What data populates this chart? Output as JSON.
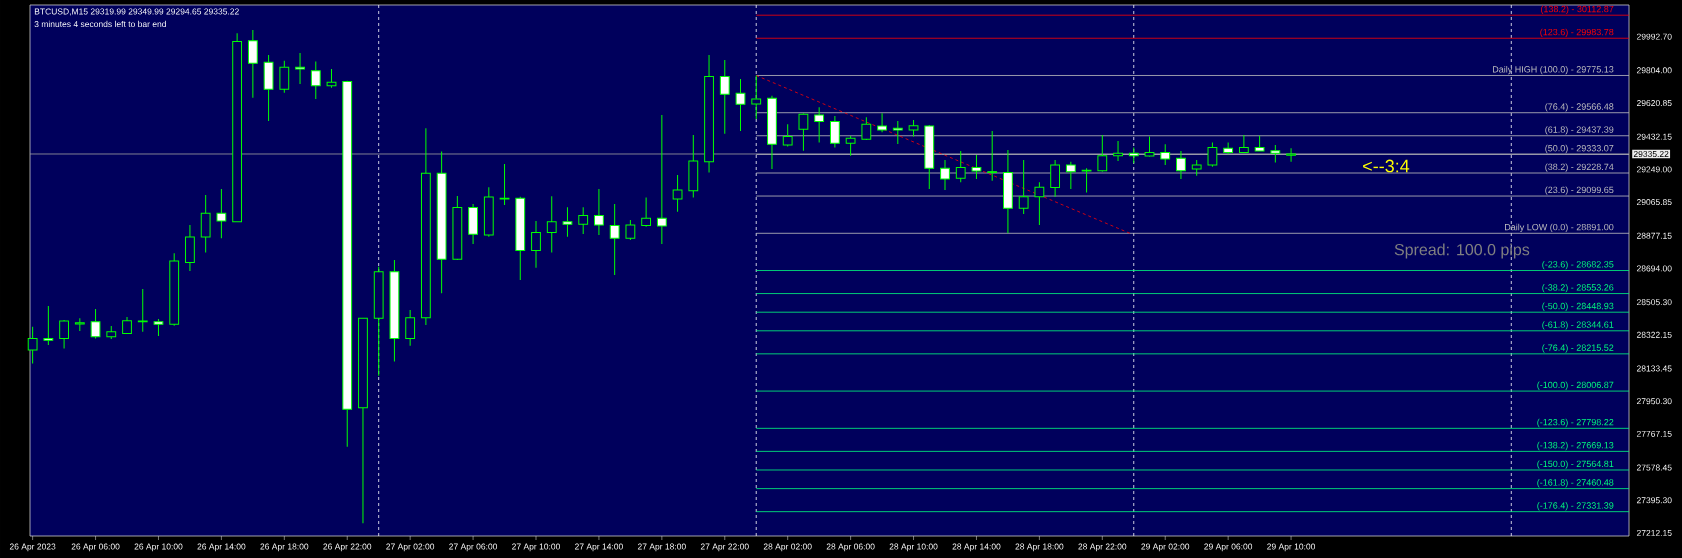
{
  "chart_data": {
    "type": "candlestick",
    "title": "BTCUSD,M15 29319.99 29349.99 29294.65 29335.22",
    "annotations": [
      "3 minutes 4 seconds left to bar end",
      "<--3:4",
      "Spread: 100.0 pips"
    ],
    "color": "#00ff00",
    "x": [
      "2023-04-26T02:00",
      "2023-04-26T03:00",
      "2023-04-26T04:00",
      "2023-04-26T05:00",
      "2023-04-26T06:00",
      "2023-04-26T07:00",
      "2023-04-26T08:00",
      "2023-04-26T09:00",
      "2023-04-26T10:00",
      "2023-04-26T11:00",
      "2023-04-26T12:00",
      "2023-04-26T13:00",
      "2023-04-26T14:00",
      "2023-04-26T15:00",
      "2023-04-26T16:00",
      "2023-04-26T17:00",
      "2023-04-26T18:00",
      "2023-04-26T19:00",
      "2023-04-26T20:00",
      "2023-04-26T21:00",
      "2023-04-26T22:00",
      "2023-04-26T23:00",
      "2023-04-27T00:00",
      "2023-04-27T01:00",
      "2023-04-27T02:00",
      "2023-04-27T03:00",
      "2023-04-27T04:00",
      "2023-04-27T05:00",
      "2023-04-27T06:00",
      "2023-04-27T07:00",
      "2023-04-27T08:00",
      "2023-04-27T09:00",
      "2023-04-27T10:00",
      "2023-04-27T11:00",
      "2023-04-27T12:00",
      "2023-04-27T13:00",
      "2023-04-27T14:00",
      "2023-04-27T15:00",
      "2023-04-27T16:00",
      "2023-04-27T17:00",
      "2023-04-27T18:00",
      "2023-04-27T19:00",
      "2023-04-27T20:00",
      "2023-04-27T21:00",
      "2023-04-27T22:00",
      "2023-04-27T23:00",
      "2023-04-28T00:00",
      "2023-04-28T01:00",
      "2023-04-28T02:00",
      "2023-04-28T03:00",
      "2023-04-28T04:00",
      "2023-04-28T05:00",
      "2023-04-28T06:00",
      "2023-04-28T07:00",
      "2023-04-28T08:00",
      "2023-04-28T09:00",
      "2023-04-28T10:00",
      "2023-04-28T11:00",
      "2023-04-28T12:00",
      "2023-04-28T13:00",
      "2023-04-28T14:00",
      "2023-04-28T15:00",
      "2023-04-28T16:00",
      "2023-04-28T17:00",
      "2023-04-28T18:00",
      "2023-04-28T19:00",
      "2023-04-28T20:00",
      "2023-04-28T21:00",
      "2023-04-28T22:00",
      "2023-04-28T23:00",
      "2023-04-29T00:00",
      "2023-04-29T01:00",
      "2023-04-29T02:00",
      "2023-04-29T03:00",
      "2023-04-29T04:00",
      "2023-04-29T05:00",
      "2023-04-29T06:00",
      "2023-04-29T07:00",
      "2023-04-29T08:00",
      "2023-04-29T09:00",
      "2023-04-29T10:00"
    ],
    "ohlc": [
      [
        28237,
        28368,
        28162,
        28302
      ],
      [
        28302,
        28484,
        28265,
        28292
      ],
      [
        28302,
        28405,
        28246,
        28400
      ],
      [
        28383,
        28415,
        28344,
        28390
      ],
      [
        28396,
        28467,
        28302,
        28312
      ],
      [
        28312,
        28372,
        28299,
        28340
      ],
      [
        28329,
        28422,
        28329,
        28401
      ],
      [
        28396,
        28579,
        28340,
        28400
      ],
      [
        28396,
        28411,
        28316,
        28381
      ],
      [
        28381,
        28779,
        28373,
        28736
      ],
      [
        28728,
        28938,
        28680,
        28870
      ],
      [
        28870,
        29106,
        28783,
        29003
      ],
      [
        29003,
        29139,
        28863,
        28960
      ],
      [
        28956,
        30012,
        28953,
        29965
      ],
      [
        29969,
        30030,
        29651,
        29844
      ],
      [
        29849,
        29890,
        29520,
        29698
      ],
      [
        29698,
        29857,
        29679,
        29821
      ],
      [
        29821,
        29901,
        29728,
        29812
      ],
      [
        29801,
        29853,
        29644,
        29718
      ],
      [
        29718,
        29812,
        29707,
        29737
      ],
      [
        29741,
        29745,
        27695,
        27905
      ],
      [
        27914,
        28415,
        27266,
        28415
      ],
      [
        28415,
        28704,
        28093,
        28676
      ],
      [
        28676,
        28741,
        28172,
        28302
      ],
      [
        28302,
        28461,
        28261,
        28418
      ],
      [
        28418,
        29479,
        28377,
        29227
      ],
      [
        29227,
        29349,
        28555,
        28745
      ],
      [
        28745,
        29100,
        28741,
        29035
      ],
      [
        29035,
        29055,
        28831,
        28885
      ],
      [
        28882,
        29149,
        28872,
        29094
      ],
      [
        29083,
        29279,
        29050,
        29087
      ],
      [
        29087,
        29096,
        28629,
        28794
      ],
      [
        28794,
        28960,
        28698,
        28896
      ],
      [
        28896,
        29098,
        28783,
        28956
      ],
      [
        28956,
        29037,
        28872,
        28941
      ],
      [
        28941,
        29037,
        28887,
        28990
      ],
      [
        28990,
        29139,
        28882,
        28938
      ],
      [
        28934,
        29055,
        28657,
        28863
      ],
      [
        28863,
        28966,
        28853,
        28938
      ],
      [
        28934,
        29091,
        28928,
        28975
      ],
      [
        28975,
        29554,
        28831,
        28932
      ],
      [
        29083,
        29218,
        29012,
        29134
      ],
      [
        29130,
        29442,
        29091,
        29296
      ],
      [
        29292,
        29890,
        29231,
        29769
      ],
      [
        29769,
        29862,
        29448,
        29670
      ],
      [
        29675,
        29756,
        29464,
        29614
      ],
      [
        29616,
        29775,
        29532,
        29644
      ],
      [
        29647,
        29662,
        29251,
        29390
      ],
      [
        29386,
        29502,
        29377,
        29433
      ],
      [
        29474,
        29563,
        29354,
        29558
      ],
      [
        29554,
        29597,
        29399,
        29517
      ],
      [
        29517,
        29548,
        29371,
        29395
      ],
      [
        29395,
        29436,
        29326,
        29423
      ],
      [
        29418,
        29541,
        29414,
        29502
      ],
      [
        29492,
        29563,
        29457,
        29470
      ],
      [
        29479,
        29520,
        29391,
        29470
      ],
      [
        29470,
        29526,
        29433,
        29494
      ],
      [
        29492,
        29498,
        29139,
        29255
      ],
      [
        29255,
        29302,
        29134,
        29195
      ],
      [
        29199,
        29352,
        29177,
        29259
      ],
      [
        29259,
        29330,
        29195,
        29240
      ],
      [
        29236,
        29464,
        29186,
        29231
      ],
      [
        29231,
        29358,
        28891,
        29031
      ],
      [
        29031,
        29302,
        28999,
        29096
      ],
      [
        29096,
        29177,
        28938,
        29149
      ],
      [
        29147,
        29302,
        29096,
        29274
      ],
      [
        29274,
        29292,
        29139,
        29236
      ],
      [
        29240,
        29255,
        29119,
        29244
      ],
      [
        29242,
        29442,
        29236,
        29326
      ],
      [
        29326,
        29408,
        29296,
        29339
      ],
      [
        29339,
        29371,
        29283,
        29326
      ],
      [
        29324,
        29433,
        29320,
        29343
      ],
      [
        29343,
        29390,
        29274,
        29307
      ],
      [
        29311,
        29352,
        29195,
        29242
      ],
      [
        29251,
        29302,
        29214,
        29274
      ],
      [
        29274,
        29399,
        29264,
        29371
      ],
      [
        29367,
        29399,
        29334,
        29343
      ],
      [
        29343,
        29442,
        29339,
        29371
      ],
      [
        29371,
        29438,
        29349,
        29352
      ],
      [
        29354,
        29386,
        29287,
        29339
      ],
      [
        29328,
        29367,
        29292,
        29335
      ]
    ],
    "xlim": [
      "2023-04-26T01:50",
      "2023-04-30T07:29"
    ],
    "ylim": [
      27195,
      30170
    ],
    "xticks": [
      {
        "value": "2023-04-26T02:00",
        "label": "26 Apr 2023"
      },
      {
        "value": "2023-04-26T06:00",
        "label": "26 Apr 06:00"
      },
      {
        "value": "2023-04-26T10:00",
        "label": "26 Apr 10:00"
      },
      {
        "value": "2023-04-26T14:00",
        "label": "26 Apr 14:00"
      },
      {
        "value": "2023-04-26T18:00",
        "label": "26 Apr 18:00"
      },
      {
        "value": "2023-04-26T22:00",
        "label": "26 Apr 22:00"
      },
      {
        "value": "2023-04-27T02:00",
        "label": "27 Apr 02:00"
      },
      {
        "value": "2023-04-27T06:00",
        "label": "27 Apr 06:00"
      },
      {
        "value": "2023-04-27T10:00",
        "label": "27 Apr 10:00"
      },
      {
        "value": "2023-04-27T14:00",
        "label": "27 Apr 14:00"
      },
      {
        "value": "2023-04-27T18:00",
        "label": "27 Apr 18:00"
      },
      {
        "value": "2023-04-27T22:00",
        "label": "27 Apr 22:00"
      },
      {
        "value": "2023-04-28T02:00",
        "label": "28 Apr 02:00"
      },
      {
        "value": "2023-04-28T06:00",
        "label": "28 Apr 06:00"
      },
      {
        "value": "2023-04-28T10:00",
        "label": "28 Apr 10:00"
      },
      {
        "value": "2023-04-28T14:00",
        "label": "28 Apr 14:00"
      },
      {
        "value": "2023-04-28T18:00",
        "label": "28 Apr 18:00"
      },
      {
        "value": "2023-04-28T22:00",
        "label": "28 Apr 22:00"
      },
      {
        "value": "2023-04-29T02:00",
        "label": "29 Apr 02:00"
      },
      {
        "value": "2023-04-29T06:00",
        "label": "29 Apr 06:00"
      },
      {
        "value": "2023-04-29T10:00",
        "label": "29 Apr 10:00"
      }
    ],
    "yticks": [
      {
        "value": 29992.7,
        "label": "29992.70"
      },
      {
        "value": 29804.0,
        "label": "29804.00"
      },
      {
        "value": 29620.85,
        "label": "29620.85"
      },
      {
        "value": 29432.15,
        "label": "29432.15"
      },
      {
        "value": 29249.0,
        "label": "29249.00"
      },
      {
        "value": 29065.85,
        "label": "29065.85"
      },
      {
        "value": 28877.15,
        "label": "28877.15"
      },
      {
        "value": 28694.0,
        "label": "28694.00"
      },
      {
        "value": 28505.3,
        "label": "28505.30"
      },
      {
        "value": 28322.15,
        "label": "28322.15"
      },
      {
        "value": 28133.45,
        "label": "28133.45"
      },
      {
        "value": 27950.3,
        "label": "27950.30"
      },
      {
        "value": 27767.15,
        "label": "27767.15"
      },
      {
        "value": 27578.45,
        "label": "27578.45"
      },
      {
        "value": 27395.3,
        "label": "27395.30"
      },
      {
        "value": 27212.15,
        "label": "27212.15"
      }
    ],
    "ref_lines": [
      {
        "axis": "y",
        "value": 29335.22,
        "label": "29335.22",
        "color": "#a0a0a0"
      },
      {
        "axis": "x",
        "value": "2023-04-27T00:00",
        "color": "#ffffff",
        "line_style": "dashed"
      },
      {
        "axis": "x",
        "value": "2023-04-28T00:00",
        "color": "#ffffff",
        "line_style": "dashed"
      },
      {
        "axis": "x",
        "value": "2023-04-29T00:00",
        "color": "#ffffff",
        "line_style": "dashed"
      },
      {
        "axis": "x",
        "value": "2023-04-30T00:00",
        "color": "#ffffff",
        "line_style": "dashed"
      }
    ],
    "series": [
      {
        "type": "line",
        "name": "(138.2) - 30112.87",
        "x": [
          "2023-04-28T00:00",
          "2023-04-30T07:29"
        ],
        "values": [
          30112.87,
          30112.87
        ],
        "color": "#ff0000"
      },
      {
        "type": "line",
        "name": "(123.6) - 29983.78",
        "x": [
          "2023-04-28T00:00",
          "2023-04-30T07:29"
        ],
        "values": [
          29983.78,
          29983.78
        ],
        "color": "#ff0000"
      },
      {
        "type": "line",
        "name": "Daily HIGH (100.0) - 29775.13",
        "x": [
          "2023-04-28T00:00",
          "2023-04-30T07:29"
        ],
        "values": [
          29775.13,
          29775.13
        ],
        "color": "#c0c0c0"
      },
      {
        "type": "line",
        "name": "(76.4) - 29566.48",
        "x": [
          "2023-04-28T00:00",
          "2023-04-30T07:29"
        ],
        "values": [
          29566.48,
          29566.48
        ],
        "color": "#c0c0c0"
      },
      {
        "type": "line",
        "name": "(61.8) - 29437.39",
        "x": [
          "2023-04-28T00:00",
          "2023-04-30T07:29"
        ],
        "values": [
          29437.39,
          29437.39
        ],
        "color": "#c0c0c0"
      },
      {
        "type": "line",
        "name": "(50.0) - 29333.07",
        "x": [
          "2023-04-28T00:00",
          "2023-04-30T07:29"
        ],
        "values": [
          29333.07,
          29333.07
        ],
        "color": "#c0c0c0"
      },
      {
        "type": "line",
        "name": "(38.2) - 29228.74",
        "x": [
          "2023-04-28T00:00",
          "2023-04-30T07:29"
        ],
        "values": [
          29228.74,
          29228.74
        ],
        "color": "#c0c0c0"
      },
      {
        "type": "line",
        "name": "(23.6) - 29099.65",
        "x": [
          "2023-04-28T00:00",
          "2023-04-30T07:29"
        ],
        "values": [
          29099.65,
          29099.65
        ],
        "color": "#c0c0c0"
      },
      {
        "type": "line",
        "name": "Daily LOW (0.0) - 28891.00",
        "x": [
          "2023-04-28T00:00",
          "2023-04-30T07:29"
        ],
        "values": [
          28891.0,
          28891.0
        ],
        "color": "#c0c0c0"
      },
      {
        "type": "line",
        "name": "(-23.6) - 28682.35",
        "x": [
          "2023-04-28T00:00",
          "2023-04-30T07:29"
        ],
        "values": [
          28682.35,
          28682.35
        ],
        "color": "#00ff7f"
      },
      {
        "type": "line",
        "name": "(-38.2) - 28553.26",
        "x": [
          "2023-04-28T00:00",
          "2023-04-30T07:29"
        ],
        "values": [
          28553.26,
          28553.26
        ],
        "color": "#00ff7f"
      },
      {
        "type": "line",
        "name": "(-50.0) - 28448.93",
        "x": [
          "2023-04-28T00:00",
          "2023-04-30T07:29"
        ],
        "values": [
          28448.93,
          28448.93
        ],
        "color": "#00ff7f"
      },
      {
        "type": "line",
        "name": "(-61.8) - 28344.61",
        "x": [
          "2023-04-28T00:00",
          "2023-04-30T07:29"
        ],
        "values": [
          28344.61,
          28344.61
        ],
        "color": "#00ff7f"
      },
      {
        "type": "line",
        "name": "(-76.4) - 28215.52",
        "x": [
          "2023-04-28T00:00",
          "2023-04-30T07:29"
        ],
        "values": [
          28215.52,
          28215.52
        ],
        "color": "#00ff7f"
      },
      {
        "type": "line",
        "name": "(-100.0) - 28006.87",
        "x": [
          "2023-04-28T00:00",
          "2023-04-30T07:29"
        ],
        "values": [
          28006.87,
          28006.87
        ],
        "color": "#00ff7f"
      },
      {
        "type": "line",
        "name": "(-123.6) - 27798.22",
        "x": [
          "2023-04-28T00:00",
          "2023-04-30T07:29"
        ],
        "values": [
          27798.22,
          27798.22
        ],
        "color": "#00ff7f"
      },
      {
        "type": "line",
        "name": "(-138.2) - 27669.13",
        "x": [
          "2023-04-28T00:00",
          "2023-04-30T07:29"
        ],
        "values": [
          27669.13,
          27669.13
        ],
        "color": "#00ff7f"
      },
      {
        "type": "line",
        "name": "(-150.0) - 27564.81",
        "x": [
          "2023-04-28T00:00",
          "2023-04-30T07:29"
        ],
        "values": [
          27564.81,
          27564.81
        ],
        "color": "#00ff7f"
      },
      {
        "type": "line",
        "name": "(-161.8) - 27460.48",
        "x": [
          "2023-04-28T00:00",
          "2023-04-30T07:29"
        ],
        "values": [
          27460.48,
          27460.48
        ],
        "color": "#00ff7f"
      },
      {
        "type": "line",
        "name": "(-176.4) - 27331.39",
        "x": [
          "2023-04-28T00:00",
          "2023-04-30T07:29"
        ],
        "values": [
          27331.39,
          27331.39
        ],
        "color": "#00ff7f"
      },
      {
        "type": "line",
        "x": [
          "2023-04-28T00:00",
          "2023-04-28T23:45"
        ],
        "values": [
          29775,
          28891
        ],
        "color": "#ff0000",
        "line_style": "dashed"
      }
    ]
  }
}
